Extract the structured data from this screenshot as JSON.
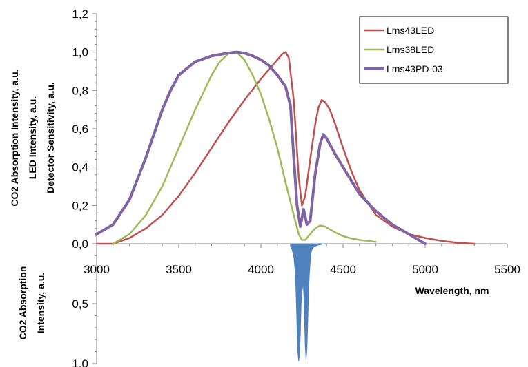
{
  "chart_data": {
    "type": "line",
    "xlabel": "Wavelength, nm",
    "ylabel_lines": [
      "CO2 Absorption Intensity, a.u.",
      "LED Intensity, a.u.",
      "Detector Sensitivity, a.u."
    ],
    "ylabel_lower_lines": [
      "CO2 Absorption",
      "Intensity, a.u."
    ],
    "xlim": [
      3000,
      5500
    ],
    "x_ticks": [
      3000,
      3500,
      4000,
      4500,
      5000,
      5500
    ],
    "x_tick_labels": [
      "3000",
      "3500",
      "4000",
      "4500",
      "5000",
      "5500"
    ],
    "ylim": [
      0,
      1.2
    ],
    "y_ticks": [
      0,
      0.2,
      0.4,
      0.6,
      0.8,
      1.0,
      1.2
    ],
    "y_tick_labels": [
      "0,0",
      "0,2",
      "0,4",
      "0,6",
      "0,8",
      "1,0",
      "1,2"
    ],
    "ylim_lower": [
      0,
      1.0
    ],
    "y_ticks_lower": [
      0.5,
      1.0
    ],
    "y_tick_labels_lower": [
      "0,5",
      "1,0"
    ],
    "legend_position": "top-right",
    "series": [
      {
        "name": "Lms43LED",
        "color": "#c0504d",
        "width": 2.5,
        "x": [
          3000,
          3100,
          3200,
          3300,
          3400,
          3500,
          3600,
          3700,
          3800,
          3900,
          4000,
          4050,
          4100,
          4130,
          4150,
          4170,
          4200,
          4230,
          4250,
          4270,
          4300,
          4330,
          4350,
          4370,
          4390,
          4420,
          4450,
          4500,
          4550,
          4600,
          4700,
          4800,
          4900,
          5000,
          5100,
          5200,
          5300
        ],
        "y": [
          0.0,
          0.0,
          0.03,
          0.08,
          0.15,
          0.25,
          0.37,
          0.5,
          0.63,
          0.75,
          0.86,
          0.91,
          0.96,
          0.99,
          1.0,
          0.97,
          0.75,
          0.35,
          0.2,
          0.25,
          0.44,
          0.62,
          0.71,
          0.75,
          0.74,
          0.7,
          0.63,
          0.5,
          0.38,
          0.28,
          0.15,
          0.09,
          0.05,
          0.03,
          0.015,
          0.005,
          0.0
        ]
      },
      {
        "name": "Lms38LED",
        "color": "#9bbb59",
        "width": 2.5,
        "x": [
          3100,
          3200,
          3300,
          3400,
          3500,
          3600,
          3700,
          3750,
          3800,
          3850,
          3900,
          3950,
          4000,
          4050,
          4100,
          4150,
          4200,
          4230,
          4250,
          4270,
          4300,
          4330,
          4360,
          4390,
          4420,
          4450,
          4500,
          4550,
          4600,
          4650,
          4700
        ],
        "y": [
          0.0,
          0.05,
          0.15,
          0.3,
          0.5,
          0.7,
          0.88,
          0.95,
          0.99,
          1.0,
          0.96,
          0.88,
          0.78,
          0.65,
          0.5,
          0.32,
          0.15,
          0.05,
          0.02,
          0.02,
          0.05,
          0.08,
          0.095,
          0.09,
          0.075,
          0.06,
          0.04,
          0.028,
          0.02,
          0.015,
          0.01
        ]
      },
      {
        "name": "Lms43PD-03",
        "color": "#8064a2",
        "width": 4,
        "x": [
          3000,
          3100,
          3200,
          3300,
          3400,
          3450,
          3500,
          3600,
          3700,
          3800,
          3850,
          3900,
          3950,
          4000,
          4050,
          4100,
          4150,
          4180,
          4200,
          4220,
          4240,
          4260,
          4280,
          4300,
          4330,
          4360,
          4380,
          4400,
          4450,
          4500,
          4550,
          4600,
          4700,
          4800,
          4900,
          5000
        ],
        "y": [
          0.05,
          0.1,
          0.23,
          0.45,
          0.7,
          0.8,
          0.88,
          0.95,
          0.98,
          0.995,
          1.0,
          0.995,
          0.98,
          0.96,
          0.93,
          0.88,
          0.82,
          0.72,
          0.45,
          0.2,
          0.09,
          0.18,
          0.1,
          0.12,
          0.36,
          0.52,
          0.57,
          0.55,
          0.47,
          0.4,
          0.33,
          0.26,
          0.17,
          0.1,
          0.05,
          0.0
        ]
      }
    ],
    "absorption_series": {
      "name": "CO2 Absorption",
      "color": "#4f81bd",
      "x": [
        4180,
        4190,
        4200,
        4210,
        4215,
        4220,
        4225,
        4230,
        4235,
        4240,
        4245,
        4250,
        4255,
        4258,
        4262,
        4265,
        4270,
        4275,
        4280,
        4285,
        4290,
        4295,
        4300,
        4305,
        4310,
        4320,
        4330,
        4340,
        4350,
        4360,
        4370,
        4380,
        4390
      ],
      "y": [
        0.02,
        0.05,
        0.1,
        0.25,
        0.45,
        0.7,
        0.9,
        0.98,
        0.92,
        0.75,
        0.5,
        0.4,
        0.35,
        0.33,
        0.45,
        0.6,
        0.85,
        0.97,
        0.88,
        0.65,
        0.4,
        0.25,
        0.15,
        0.08,
        0.05,
        0.03,
        0.02,
        0.015,
        0.01,
        0.008,
        0.005,
        0.003,
        0.0
      ]
    }
  }
}
